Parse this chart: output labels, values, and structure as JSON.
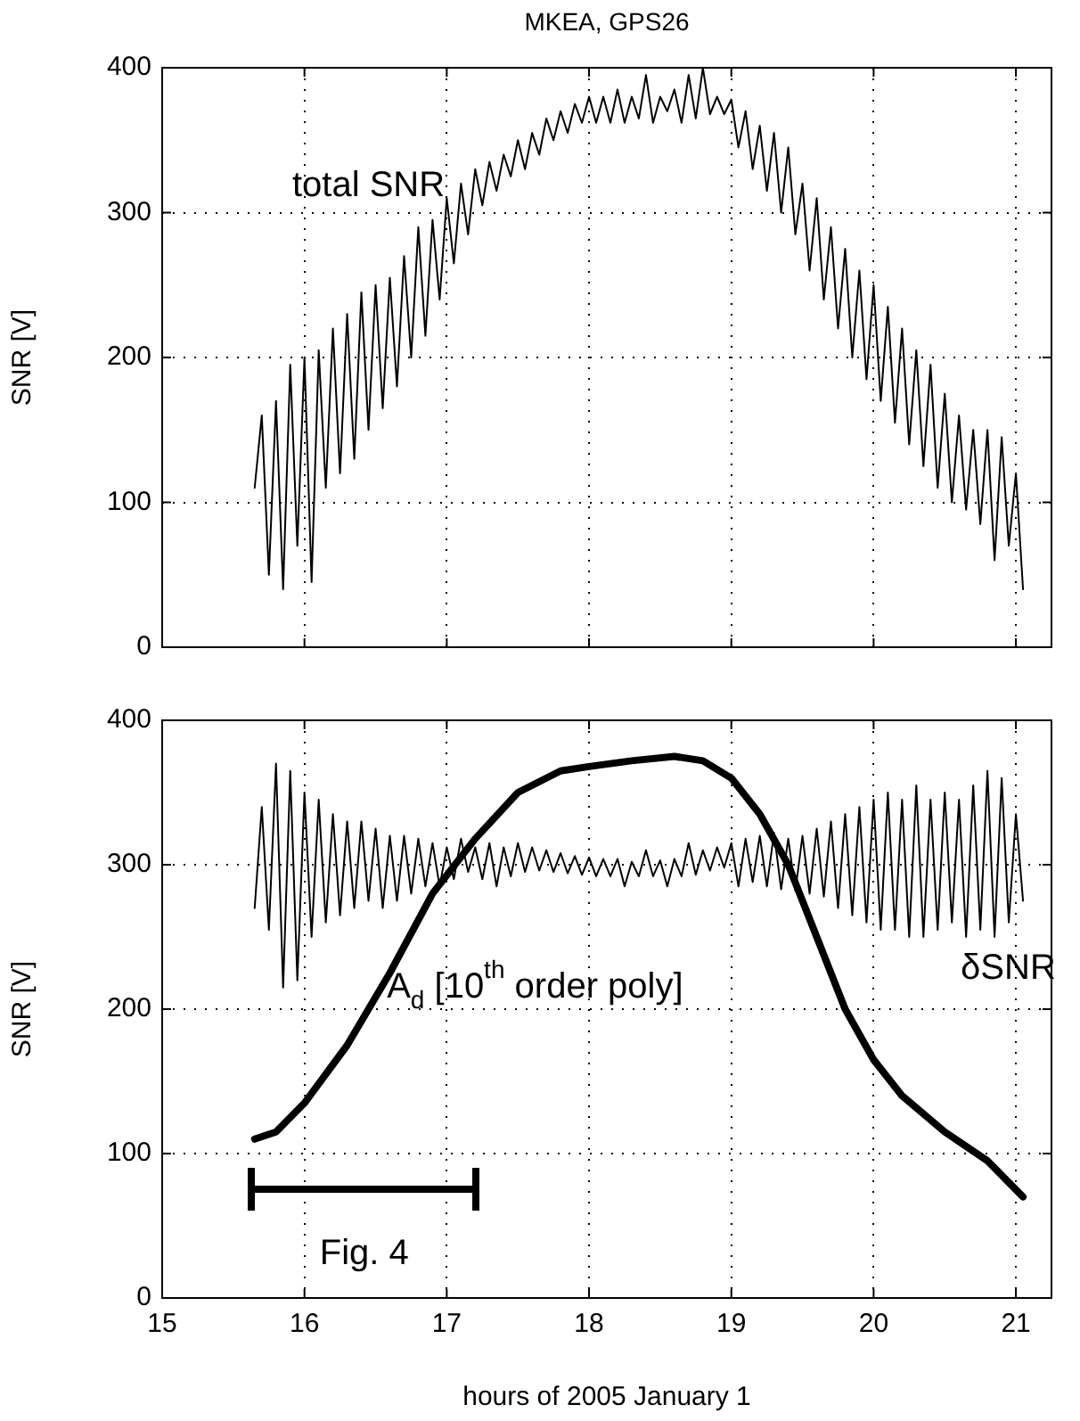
{
  "chart_data": [
    {
      "type": "line",
      "title": "MKEA, GPS26",
      "ylabel": "SNR [V]",
      "xlim": [
        15,
        21.25
      ],
      "xticks": [
        15,
        16,
        17,
        18,
        19,
        20,
        21
      ],
      "ylim": [
        0,
        400
      ],
      "yticks": [
        0,
        100,
        200,
        300,
        400
      ],
      "grid": true,
      "tick_labels": "y",
      "series": [
        {
          "name": "total SNR",
          "color": "#000000",
          "x": [
            15.65,
            15.7,
            15.75,
            15.8,
            15.85,
            15.9,
            15.95,
            16,
            16.05,
            16.1,
            16.15,
            16.2,
            16.25,
            16.3,
            16.35,
            16.4,
            16.45,
            16.5,
            16.55,
            16.6,
            16.65,
            16.7,
            16.75,
            16.8,
            16.85,
            16.9,
            16.95,
            17,
            17.05,
            17.1,
            17.15,
            17.2,
            17.25,
            17.3,
            17.35,
            17.4,
            17.45,
            17.5,
            17.55,
            17.6,
            17.65,
            17.7,
            17.75,
            17.8,
            17.85,
            17.9,
            17.95,
            18,
            18.05,
            18.1,
            18.15,
            18.2,
            18.25,
            18.3,
            18.35,
            18.4,
            18.45,
            18.5,
            18.55,
            18.6,
            18.65,
            18.7,
            18.75,
            18.8,
            18.85,
            18.9,
            18.95,
            19,
            19.05,
            19.1,
            19.15,
            19.2,
            19.25,
            19.3,
            19.35,
            19.4,
            19.45,
            19.5,
            19.55,
            19.6,
            19.65,
            19.7,
            19.75,
            19.8,
            19.85,
            19.9,
            19.95,
            20,
            20.05,
            20.1,
            20.15,
            20.2,
            20.25,
            20.3,
            20.35,
            20.4,
            20.45,
            20.5,
            20.55,
            20.6,
            20.65,
            20.7,
            20.75,
            20.8,
            20.85,
            20.9,
            20.95,
            21,
            21.05
          ],
          "values": [
            110,
            160,
            50,
            170,
            40,
            195,
            70,
            200,
            45,
            205,
            110,
            220,
            120,
            230,
            130,
            245,
            150,
            250,
            165,
            255,
            180,
            270,
            200,
            290,
            215,
            295,
            240,
            310,
            265,
            320,
            285,
            330,
            305,
            335,
            315,
            340,
            325,
            350,
            330,
            355,
            340,
            365,
            350,
            370,
            355,
            375,
            362,
            380,
            362,
            380,
            362,
            385,
            362,
            380,
            365,
            395,
            362,
            380,
            370,
            385,
            362,
            395,
            365,
            400,
            368,
            380,
            368,
            378,
            345,
            370,
            330,
            360,
            315,
            355,
            300,
            345,
            285,
            320,
            260,
            310,
            240,
            290,
            220,
            275,
            200,
            260,
            185,
            250,
            170,
            235,
            155,
            220,
            140,
            205,
            125,
            195,
            110,
            175,
            100,
            160,
            95,
            150,
            85,
            150,
            60,
            145,
            70,
            120,
            40
          ]
        }
      ]
    },
    {
      "type": "line",
      "xlabel": "hours of 2005 January 1",
      "ylabel": "SNR [V]",
      "xlim": [
        15,
        21.25
      ],
      "xticks": [
        15,
        16,
        17,
        18,
        19,
        20,
        21
      ],
      "ylim": [
        0,
        400
      ],
      "yticks": [
        0,
        100,
        200,
        300,
        400
      ],
      "grid": true,
      "annotations": [
        "Fig. 4"
      ],
      "series": [
        {
          "name": "δSNR",
          "color": "#000000",
          "x": [
            15.65,
            15.7,
            15.75,
            15.8,
            15.85,
            15.9,
            15.95,
            16,
            16.05,
            16.1,
            16.15,
            16.2,
            16.25,
            16.3,
            16.35,
            16.4,
            16.45,
            16.5,
            16.55,
            16.6,
            16.65,
            16.7,
            16.75,
            16.8,
            16.85,
            16.9,
            16.95,
            17,
            17.05,
            17.1,
            17.15,
            17.2,
            17.25,
            17.3,
            17.35,
            17.4,
            17.45,
            17.5,
            17.55,
            17.6,
            17.65,
            17.7,
            17.75,
            17.8,
            17.85,
            17.9,
            17.95,
            18,
            18.05,
            18.1,
            18.15,
            18.2,
            18.25,
            18.3,
            18.35,
            18.4,
            18.45,
            18.5,
            18.55,
            18.6,
            18.65,
            18.7,
            18.75,
            18.8,
            18.85,
            18.9,
            18.95,
            19,
            19.05,
            19.1,
            19.15,
            19.2,
            19.25,
            19.3,
            19.35,
            19.4,
            19.45,
            19.5,
            19.55,
            19.6,
            19.65,
            19.7,
            19.75,
            19.8,
            19.85,
            19.9,
            19.95,
            20,
            20.05,
            20.1,
            20.15,
            20.2,
            20.25,
            20.3,
            20.35,
            20.4,
            20.45,
            20.5,
            20.55,
            20.6,
            20.65,
            20.7,
            20.75,
            20.8,
            20.85,
            20.9,
            20.95,
            21,
            21.05
          ],
          "values": [
            270,
            340,
            255,
            370,
            215,
            365,
            220,
            350,
            250,
            345,
            260,
            335,
            265,
            330,
            270,
            330,
            275,
            325,
            270,
            320,
            275,
            320,
            280,
            318,
            285,
            315,
            285,
            312,
            290,
            318,
            295,
            312,
            290,
            315,
            285,
            312,
            292,
            315,
            295,
            312,
            296,
            310,
            295,
            308,
            294,
            306,
            293,
            305,
            292,
            304,
            292,
            304,
            285,
            302,
            292,
            310,
            292,
            303,
            285,
            304,
            292,
            315,
            293,
            310,
            296,
            312,
            298,
            315,
            285,
            318,
            288,
            320,
            285,
            322,
            283,
            318,
            282,
            320,
            280,
            325,
            278,
            330,
            270,
            335,
            265,
            340,
            260,
            345,
            255,
            350,
            255,
            345,
            250,
            355,
            250,
            345,
            255,
            350,
            260,
            345,
            250,
            355,
            255,
            365,
            250,
            360,
            260,
            335,
            275
          ]
        },
        {
          "name": "A$_{d}$ [10$^{th}$ order poly]",
          "color": "#000000",
          "x": [
            15.65,
            15.8,
            16,
            16.3,
            16.6,
            16.9,
            17.2,
            17.5,
            17.8,
            18,
            18.3,
            18.6,
            18.8,
            19,
            19.2,
            19.4,
            19.6,
            19.8,
            20,
            20.2,
            20.5,
            20.8,
            21.05
          ],
          "values": [
            110,
            115,
            135,
            175,
            225,
            280,
            318,
            350,
            365,
            368,
            372,
            375,
            372,
            360,
            335,
            300,
            250,
            200,
            165,
            140,
            115,
            95,
            70
          ]
        }
      ]
    }
  ]
}
